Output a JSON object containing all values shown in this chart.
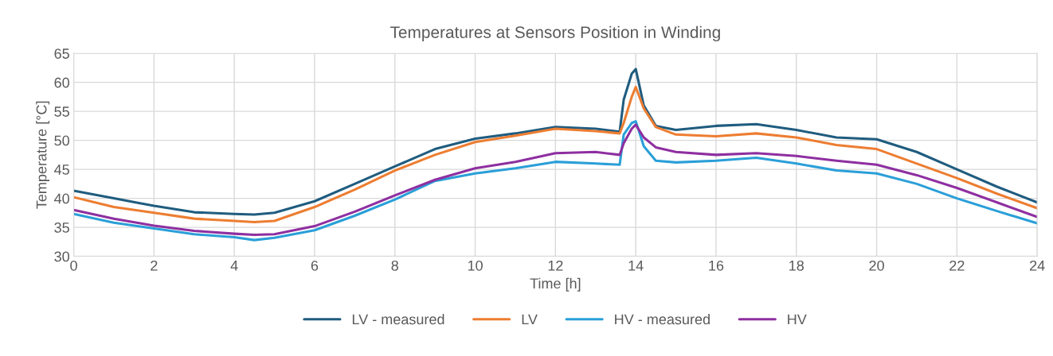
{
  "chart_data": {
    "type": "line",
    "title": "Temperatures at Sensors Position in Winding",
    "xlabel": "Time [h]",
    "ylabel": "Temperature [°C]",
    "x": [
      0,
      1,
      2,
      3,
      4,
      4.5,
      5,
      6,
      7,
      8,
      9,
      10,
      11,
      12,
      13,
      13.6,
      13.7,
      13.9,
      14,
      14.2,
      14.5,
      15,
      16,
      17,
      18,
      19,
      20,
      21,
      22,
      23,
      24
    ],
    "series": [
      {
        "name": "LV - measured",
        "color": "#1f5c7f",
        "values": [
          41.3,
          40,
          38.7,
          37.6,
          37.3,
          37.2,
          37.5,
          39.5,
          42.5,
          45.5,
          48.5,
          50.3,
          51.2,
          52.3,
          52.0,
          51.5,
          57,
          61.5,
          62.3,
          56,
          52.5,
          51.8,
          52.5,
          52.8,
          51.8,
          50.5,
          50.2,
          48,
          45,
          42,
          39.3
        ]
      },
      {
        "name": "LV",
        "color": "#ed7d31",
        "values": [
          40.2,
          38.5,
          37.5,
          36.5,
          36.1,
          35.9,
          36.1,
          38.5,
          41.5,
          44.8,
          47.5,
          49.7,
          50.8,
          52,
          51.6,
          51.2,
          53,
          57.5,
          59.2,
          55.5,
          52.3,
          51,
          50.7,
          51.2,
          50.5,
          49.2,
          48.5,
          46,
          43.5,
          40.8,
          38.3
        ]
      },
      {
        "name": "HV - measured",
        "color": "#2a9fd8",
        "values": [
          37.3,
          35.8,
          34.8,
          33.8,
          33.3,
          32.8,
          33.2,
          34.5,
          37,
          39.8,
          43,
          44.3,
          45.2,
          46.3,
          46,
          45.8,
          51,
          53,
          53.3,
          49,
          46.5,
          46.2,
          46.5,
          47,
          46,
          44.8,
          44.3,
          42.5,
          40,
          37.8,
          35.7
        ]
      },
      {
        "name": "HV",
        "color": "#8e2fa0",
        "values": [
          38,
          36.5,
          35.3,
          34.4,
          33.9,
          33.7,
          33.8,
          35.2,
          37.7,
          40.5,
          43.2,
          45.2,
          46.3,
          47.8,
          48,
          47.5,
          49.5,
          52,
          52.7,
          50.5,
          48.8,
          48,
          47.5,
          47.8,
          47.3,
          46.5,
          45.8,
          44,
          41.8,
          39.3,
          36.8
        ]
      }
    ],
    "xlim": [
      0,
      24
    ],
    "xticks": [
      0,
      2,
      4,
      6,
      8,
      10,
      12,
      14,
      16,
      18,
      20,
      22,
      24
    ],
    "ylim": [
      30,
      65
    ],
    "yticks": [
      30,
      35,
      40,
      45,
      50,
      55,
      60,
      65
    ],
    "grid": true,
    "legend": "bottom",
    "marker": "none",
    "line_style": "solid"
  }
}
